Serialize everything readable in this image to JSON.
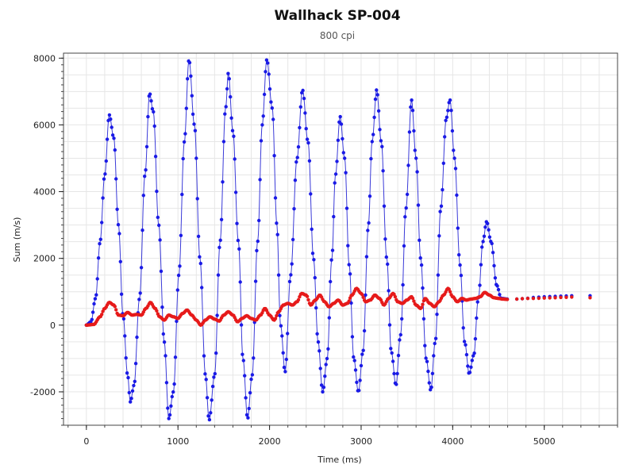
{
  "chart_data": {
    "type": "scatter",
    "title": "Wallhack SP-004",
    "subtitle": "800 cpi",
    "xlabel": "Time (ms)",
    "ylabel": "Sum (m/s)",
    "xlim": [
      -250,
      5800
    ],
    "ylim": [
      -3000,
      8150
    ],
    "x_ticks": [
      0,
      1000,
      2000,
      3000,
      4000,
      5000
    ],
    "y_ticks": [
      -2000,
      0,
      2000,
      4000,
      6000,
      8000
    ],
    "grid": true,
    "legend": "none",
    "colors": {
      "blue": "#1a1ae6",
      "red": "#e61a1a",
      "fit_line": "#3a3ad8",
      "grid": "#e6e6e6"
    },
    "series": [
      {
        "color": "#1a1ae6",
        "style": "dense points with thin fitted line",
        "keypoints": [
          [
            0,
            0
          ],
          [
            50,
            100
          ],
          [
            100,
            800
          ],
          [
            150,
            2500
          ],
          [
            200,
            4500
          ],
          [
            250,
            6300
          ],
          [
            300,
            5600
          ],
          [
            350,
            3000
          ],
          [
            400,
            300
          ],
          [
            450,
            -1500
          ],
          [
            480,
            -2300
          ],
          [
            520,
            -1800
          ],
          [
            580,
            800
          ],
          [
            640,
            4500
          ],
          [
            690,
            6950
          ],
          [
            730,
            6400
          ],
          [
            790,
            3000
          ],
          [
            850,
            -500
          ],
          [
            900,
            -2800
          ],
          [
            950,
            -2000
          ],
          [
            1010,
            1500
          ],
          [
            1070,
            5500
          ],
          [
            1120,
            7950
          ],
          [
            1180,
            6000
          ],
          [
            1240,
            2000
          ],
          [
            1300,
            -1500
          ],
          [
            1340,
            -2850
          ],
          [
            1400,
            -1500
          ],
          [
            1460,
            2500
          ],
          [
            1520,
            6500
          ],
          [
            1550,
            7550
          ],
          [
            1600,
            5800
          ],
          [
            1660,
            2500
          ],
          [
            1710,
            -1000
          ],
          [
            1760,
            -2800
          ],
          [
            1810,
            -1500
          ],
          [
            1870,
            2500
          ],
          [
            1920,
            6000
          ],
          [
            1970,
            7950
          ],
          [
            2030,
            6500
          ],
          [
            2080,
            3000
          ],
          [
            2120,
            0
          ],
          [
            2170,
            -1400
          ],
          [
            2230,
            1500
          ],
          [
            2300,
            5000
          ],
          [
            2360,
            7050
          ],
          [
            2420,
            5500
          ],
          [
            2480,
            2000
          ],
          [
            2530,
            -500
          ],
          [
            2580,
            -2000
          ],
          [
            2630,
            -1000
          ],
          [
            2680,
            2000
          ],
          [
            2720,
            4500
          ],
          [
            2770,
            6250
          ],
          [
            2820,
            5000
          ],
          [
            2870,
            1800
          ],
          [
            2920,
            -1000
          ],
          [
            2970,
            -2000
          ],
          [
            3020,
            -800
          ],
          [
            3080,
            3000
          ],
          [
            3120,
            5500
          ],
          [
            3170,
            7050
          ],
          [
            3220,
            5500
          ],
          [
            3280,
            2000
          ],
          [
            3330,
            -800
          ],
          [
            3380,
            -1800
          ],
          [
            3430,
            -300
          ],
          [
            3490,
            3500
          ],
          [
            3550,
            6750
          ],
          [
            3600,
            5000
          ],
          [
            3650,
            2000
          ],
          [
            3710,
            -1000
          ],
          [
            3760,
            -1950
          ],
          [
            3810,
            -500
          ],
          [
            3870,
            3500
          ],
          [
            3930,
            6200
          ],
          [
            3970,
            6750
          ],
          [
            4020,
            5000
          ],
          [
            4080,
            1800
          ],
          [
            4130,
            -500
          ],
          [
            4180,
            -1450
          ],
          [
            4230,
            -900
          ],
          [
            4280,
            800
          ],
          [
            4330,
            2500
          ],
          [
            4370,
            3100
          ],
          [
            4420,
            2500
          ],
          [
            4480,
            1200
          ],
          [
            4530,
            800
          ],
          [
            4600,
            780
          ],
          [
            4700,
            780
          ],
          [
            4800,
            800
          ],
          [
            4900,
            830
          ],
          [
            5000,
            850
          ],
          [
            5100,
            860
          ],
          [
            5200,
            870
          ],
          [
            5300,
            880
          ],
          [
            5500,
            880
          ]
        ]
      },
      {
        "color": "#e61a1a",
        "style": "dense points",
        "keypoints": [
          [
            0,
            0
          ],
          [
            80,
            20
          ],
          [
            150,
            250
          ],
          [
            200,
            500
          ],
          [
            250,
            680
          ],
          [
            300,
            600
          ],
          [
            350,
            300
          ],
          [
            400,
            280
          ],
          [
            450,
            380
          ],
          [
            500,
            300
          ],
          [
            550,
            320
          ],
          [
            600,
            300
          ],
          [
            650,
            500
          ],
          [
            700,
            680
          ],
          [
            750,
            500
          ],
          [
            800,
            250
          ],
          [
            850,
            150
          ],
          [
            900,
            300
          ],
          [
            950,
            250
          ],
          [
            1000,
            200
          ],
          [
            1050,
            350
          ],
          [
            1100,
            450
          ],
          [
            1150,
            300
          ],
          [
            1200,
            150
          ],
          [
            1250,
            0
          ],
          [
            1300,
            150
          ],
          [
            1350,
            250
          ],
          [
            1400,
            180
          ],
          [
            1450,
            120
          ],
          [
            1500,
            300
          ],
          [
            1550,
            400
          ],
          [
            1600,
            300
          ],
          [
            1650,
            100
          ],
          [
            1700,
            200
          ],
          [
            1750,
            280
          ],
          [
            1800,
            200
          ],
          [
            1850,
            150
          ],
          [
            1900,
            300
          ],
          [
            1950,
            500
          ],
          [
            2000,
            300
          ],
          [
            2050,
            150
          ],
          [
            2100,
            400
          ],
          [
            2150,
            600
          ],
          [
            2200,
            650
          ],
          [
            2250,
            600
          ],
          [
            2300,
            700
          ],
          [
            2350,
            950
          ],
          [
            2400,
            900
          ],
          [
            2450,
            600
          ],
          [
            2500,
            750
          ],
          [
            2550,
            900
          ],
          [
            2600,
            700
          ],
          [
            2650,
            550
          ],
          [
            2700,
            650
          ],
          [
            2750,
            750
          ],
          [
            2800,
            600
          ],
          [
            2850,
            650
          ],
          [
            2900,
            900
          ],
          [
            2950,
            1100
          ],
          [
            3000,
            950
          ],
          [
            3050,
            700
          ],
          [
            3100,
            750
          ],
          [
            3150,
            900
          ],
          [
            3200,
            800
          ],
          [
            3250,
            600
          ],
          [
            3300,
            800
          ],
          [
            3350,
            950
          ],
          [
            3400,
            700
          ],
          [
            3450,
            650
          ],
          [
            3500,
            750
          ],
          [
            3550,
            850
          ],
          [
            3600,
            600
          ],
          [
            3650,
            500
          ],
          [
            3700,
            800
          ],
          [
            3750,
            650
          ],
          [
            3800,
            550
          ],
          [
            3850,
            700
          ],
          [
            3900,
            900
          ],
          [
            3950,
            1100
          ],
          [
            4000,
            850
          ],
          [
            4050,
            700
          ],
          [
            4100,
            800
          ],
          [
            4150,
            750
          ],
          [
            4200,
            780
          ],
          [
            4250,
            800
          ],
          [
            4300,
            850
          ],
          [
            4350,
            980
          ],
          [
            4400,
            900
          ],
          [
            4450,
            820
          ],
          [
            4500,
            800
          ],
          [
            4550,
            780
          ],
          [
            4600,
            770
          ],
          [
            4700,
            780
          ],
          [
            4800,
            800
          ],
          [
            4900,
            800
          ],
          [
            5000,
            810
          ],
          [
            5100,
            820
          ],
          [
            5200,
            830
          ],
          [
            5300,
            840
          ],
          [
            5500,
            820
          ]
        ]
      }
    ]
  }
}
